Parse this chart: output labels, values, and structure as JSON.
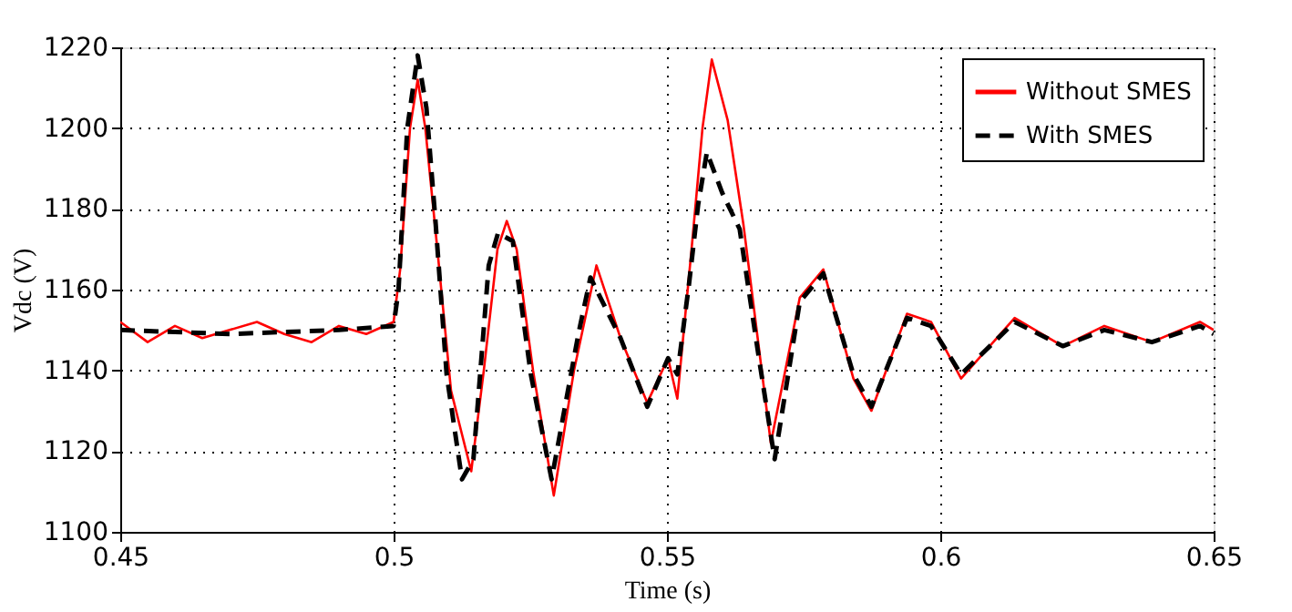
{
  "chart_data": {
    "type": "line",
    "xlabel": "Time (s)",
    "ylabel": "Vdc (V)",
    "xlim": [
      0.45,
      0.65
    ],
    "xticks": [
      0.45,
      0.5,
      0.55,
      0.6,
      0.65
    ],
    "ylim": [
      1100,
      1220
    ],
    "yticks": [
      1100,
      1120,
      1140,
      1160,
      1180,
      1200,
      1220
    ],
    "grid": true,
    "legend": "top right",
    "marker": "none",
    "series": [
      {
        "name": "Without SMES",
        "color": "#ff0000",
        "line_style": "solid",
        "x": [
          0.45,
          0.455,
          0.46,
          0.465,
          0.47,
          0.475,
          0.48,
          0.485,
          0.49,
          0.495,
          0.5,
          0.5012,
          0.503,
          0.5044,
          0.5058,
          0.508,
          0.5105,
          0.5142,
          0.5165,
          0.519,
          0.5207,
          0.5225,
          0.5255,
          0.5293,
          0.533,
          0.5371,
          0.5415,
          0.5464,
          0.5502,
          0.5519,
          0.5545,
          0.5565,
          0.5582,
          0.5611,
          0.564,
          0.569,
          0.5743,
          0.5786,
          0.5841,
          0.5874,
          0.5939,
          0.5983,
          0.6038,
          0.6136,
          0.6224,
          0.63,
          0.6387,
          0.6475,
          0.65
        ],
        "values": [
          1152,
          1147,
          1151,
          1148,
          1150,
          1152,
          1149,
          1147,
          1151,
          1149,
          1152,
          1165,
          1200,
          1212,
          1200,
          1170,
          1135,
          1115,
          1140,
          1170,
          1177,
          1170,
          1140,
          1109,
          1140,
          1166,
          1148,
          1132,
          1143,
          1133,
          1170,
          1200,
          1217,
          1202,
          1176,
          1122,
          1158,
          1165,
          1138,
          1130,
          1154,
          1152,
          1138,
          1153,
          1146,
          1151,
          1147,
          1152,
          1150
        ]
      },
      {
        "name": "With SMES",
        "color": "#000000",
        "line_style": "dashed",
        "x": [
          0.45,
          0.47,
          0.49,
          0.5,
          0.5009,
          0.5025,
          0.5044,
          0.506,
          0.5076,
          0.5097,
          0.5125,
          0.5146,
          0.5174,
          0.5191,
          0.5218,
          0.5251,
          0.5289,
          0.5338,
          0.536,
          0.5415,
          0.5464,
          0.5502,
          0.5519,
          0.554,
          0.5557,
          0.5573,
          0.5601,
          0.5633,
          0.5666,
          0.5697,
          0.5743,
          0.5786,
          0.5841,
          0.5874,
          0.5939,
          0.5983,
          0.6038,
          0.6136,
          0.6224,
          0.63,
          0.6387,
          0.6475,
          0.65
        ],
        "values": [
          1150,
          1149,
          1150,
          1151,
          1160,
          1200,
          1218,
          1205,
          1178,
          1139,
          1113,
          1118,
          1166,
          1174,
          1172,
          1139,
          1113,
          1149,
          1163,
          1148,
          1131,
          1143,
          1139,
          1161,
          1181,
          1194,
          1184,
          1175,
          1145,
          1118,
          1157,
          1164,
          1139,
          1131,
          1153,
          1151,
          1139,
          1152,
          1146,
          1150,
          1147,
          1151,
          1149
        ]
      }
    ]
  }
}
